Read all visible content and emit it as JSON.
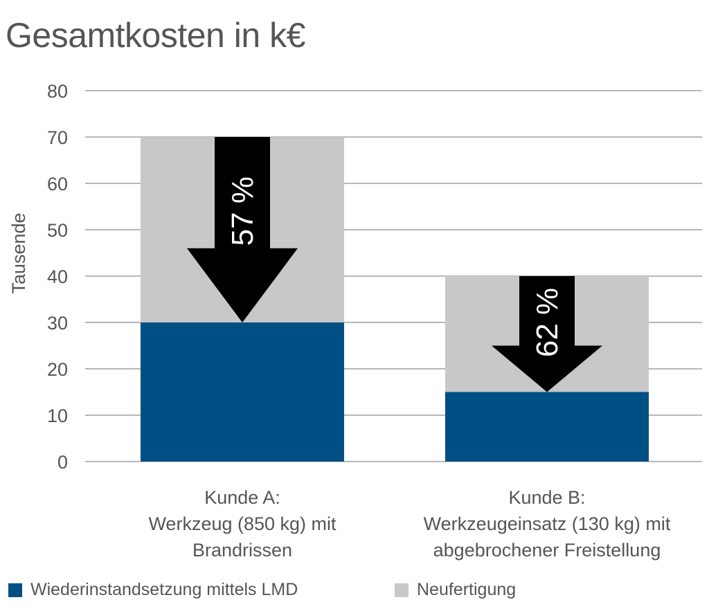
{
  "chart_data": {
    "type": "bar",
    "stacked": true,
    "title": "Gesamtkosten in k€",
    "ylabel": "Tausende",
    "ylim": [
      0,
      80
    ],
    "yticks": [
      0,
      10,
      20,
      30,
      40,
      50,
      60,
      70,
      80
    ],
    "grid": true,
    "legend_position": "bottom",
    "categories": [
      [
        "Kunde A:",
        "Werkzeug (850 kg) mit",
        "Brandrissen"
      ],
      [
        "Kunde B:",
        "Werkzeugeinsatz (130 kg) mit",
        "abgebrochener Freistellung"
      ]
    ],
    "series": [
      {
        "name": "Wiederinstandsetzung mittels LMD",
        "values": [
          30,
          15
        ],
        "color": "#004f84"
      },
      {
        "name": "Neufertigung",
        "values": [
          40,
          25
        ],
        "color": "#c8c8c8"
      }
    ],
    "annotations": [
      {
        "category": 0,
        "text": "57 %",
        "shape": "down-arrow",
        "color": "#000000"
      },
      {
        "category": 1,
        "text": "62 %",
        "shape": "down-arrow",
        "color": "#000000"
      }
    ]
  }
}
